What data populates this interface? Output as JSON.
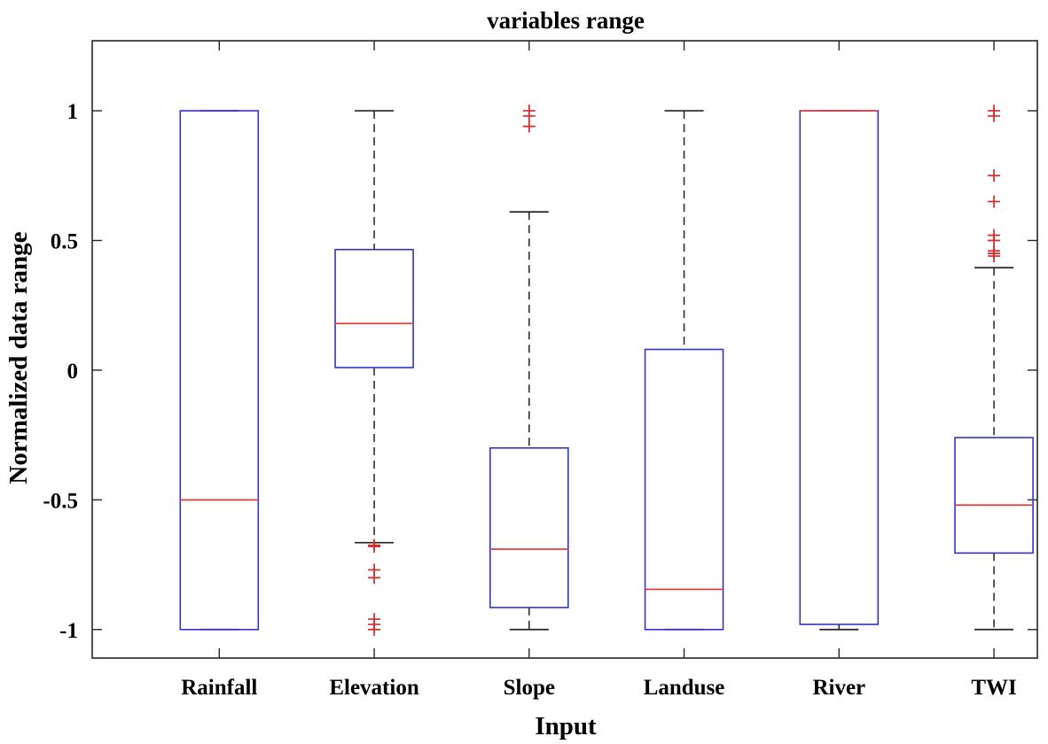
{
  "chart_data": {
    "type": "boxplot",
    "title": "variables range",
    "xlabel": "Input",
    "ylabel": "Normalized data range",
    "ylim": [
      -1.11,
      1.27
    ],
    "yticks": [
      1,
      0.5,
      0,
      -0.5,
      -1
    ],
    "ytick_labels": [
      "1",
      "0.5",
      "0",
      "-0.5",
      "-1"
    ],
    "grid": false,
    "colors": {
      "box": "#3333cc",
      "median": "#e0403c",
      "whisker": "#222222",
      "outlier": "#d42a2a"
    },
    "categories": [
      "Rainfall",
      "Elevation",
      "Slope",
      "Landuse",
      "River",
      "TWI"
    ],
    "boxes": [
      {
        "name": "Rainfall",
        "whisker_low": -1.0,
        "q1": -1.0,
        "median": -0.5,
        "q3": 1.0,
        "whisker_high": 1.0,
        "outliers": []
      },
      {
        "name": "Elevation",
        "whisker_low": -0.665,
        "q1": 0.01,
        "median": 0.18,
        "q3": 0.465,
        "whisker_high": 1.0,
        "outliers": [
          -0.675,
          -0.68,
          -0.77,
          -0.8,
          -0.96,
          -0.98,
          -1.0
        ]
      },
      {
        "name": "Slope",
        "whisker_low": -1.0,
        "q1": -0.915,
        "median": -0.69,
        "q3": -0.3,
        "whisker_high": 0.61,
        "outliers": [
          0.94,
          0.98,
          1.0
        ]
      },
      {
        "name": "Landuse",
        "whisker_low": -1.0,
        "q1": -1.0,
        "median": -0.845,
        "q3": 0.08,
        "whisker_high": 1.0,
        "outliers": []
      },
      {
        "name": "River",
        "whisker_low": -1.0,
        "q1": -0.98,
        "median": 1.0,
        "q3": 1.0,
        "whisker_high": 1.0,
        "outliers": []
      },
      {
        "name": "TWI",
        "whisker_low": -1.0,
        "q1": -0.705,
        "median": -0.52,
        "q3": -0.26,
        "whisker_high": 0.395,
        "outliers": [
          0.44,
          0.45,
          0.46,
          0.5,
          0.52,
          0.65,
          0.75,
          0.98,
          1.0
        ]
      }
    ]
  }
}
